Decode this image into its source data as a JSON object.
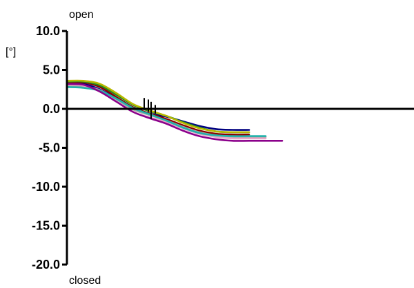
{
  "chart_data": {
    "type": "line",
    "title": "",
    "xlabel": "",
    "ylabel": "[°]",
    "ylim": [
      -20.0,
      10.0
    ],
    "yticks": [
      "10.0",
      "5.0",
      "0.0",
      "-5.0",
      "-10.0",
      "-15.0",
      "-20.0"
    ],
    "annotations": {
      "top": "open",
      "bottom": "closed"
    },
    "grid": false,
    "x_axis_at_y": 0,
    "series": [
      {
        "color": "#000080",
        "x": [
          0,
          6,
          12,
          18,
          24,
          30,
          36,
          42,
          48,
          54,
          60,
          66
        ],
        "y": [
          3.3,
          3.2,
          2.5,
          1.3,
          0.1,
          -0.6,
          -1.0,
          -1.6,
          -2.2,
          -2.6,
          -2.7,
          -2.7
        ]
      },
      {
        "color": "#8B0000",
        "x": [
          0,
          6,
          12,
          18,
          24,
          30,
          36,
          42,
          48,
          54,
          60,
          66
        ],
        "y": [
          3.4,
          3.4,
          2.8,
          1.5,
          0.2,
          -0.6,
          -1.3,
          -2.1,
          -2.8,
          -3.2,
          -3.3,
          -3.3
        ]
      },
      {
        "color": "#A9A9A9",
        "x": [
          0,
          6,
          12,
          18,
          24,
          30,
          36,
          42,
          48,
          54,
          60,
          66,
          72
        ],
        "y": [
          3.0,
          2.9,
          2.4,
          1.2,
          -0.1,
          -0.8,
          -1.5,
          -2.3,
          -3.0,
          -3.4,
          -3.6,
          -3.6,
          -3.6
        ]
      },
      {
        "color": "#E6A8C8",
        "x": [
          0,
          6,
          12,
          18,
          24,
          30,
          36,
          42,
          48,
          54,
          60,
          66,
          72
        ],
        "y": [
          3.1,
          3.0,
          2.2,
          0.9,
          -0.4,
          -1.1,
          -1.7,
          -2.5,
          -3.2,
          -3.6,
          -3.8,
          -3.8,
          -3.8
        ]
      },
      {
        "color": "#20B2AA",
        "x": [
          0,
          6,
          12,
          18,
          24,
          30,
          36,
          42,
          48,
          54,
          60,
          66,
          72
        ],
        "y": [
          2.8,
          2.7,
          2.3,
          1.3,
          0.1,
          -0.7,
          -1.5,
          -2.4,
          -3.1,
          -3.4,
          -3.5,
          -3.5,
          -3.5
        ]
      },
      {
        "color": "#228B22",
        "x": [
          0,
          6,
          12,
          18,
          24,
          30,
          36,
          42,
          48,
          54,
          60,
          66
        ],
        "y": [
          3.5,
          3.5,
          3.0,
          1.8,
          0.5,
          -0.3,
          -0.9,
          -1.7,
          -2.4,
          -2.9,
          -3.0,
          -3.0
        ]
      },
      {
        "color": "#8B008B",
        "x": [
          0,
          6,
          12,
          18,
          24,
          30,
          36,
          42,
          48,
          54,
          60,
          66,
          72,
          78
        ],
        "y": [
          3.2,
          3.1,
          2.2,
          0.9,
          -0.4,
          -1.2,
          -1.9,
          -2.8,
          -3.5,
          -3.9,
          -4.1,
          -4.1,
          -4.1,
          -4.1
        ]
      },
      {
        "color": "#B8B800",
        "x": [
          0,
          6,
          12,
          18,
          24,
          30,
          36,
          42,
          48,
          54,
          60,
          66
        ],
        "y": [
          3.6,
          3.6,
          3.2,
          2.0,
          0.6,
          -0.2,
          -0.9,
          -1.8,
          -2.5,
          -2.9,
          -3.0,
          -3.0
        ]
      }
    ],
    "markers": [
      {
        "x": 28,
        "y_top": 1.4,
        "y_bottom": -0.1
      },
      {
        "x": 29.5,
        "y_top": 1.2,
        "y_bottom": -0.4
      },
      {
        "x": 30.5,
        "y_top": 0.9,
        "y_bottom": -1.3
      },
      {
        "x": 32,
        "y_top": 0.5,
        "y_bottom": -0.6
      }
    ]
  }
}
